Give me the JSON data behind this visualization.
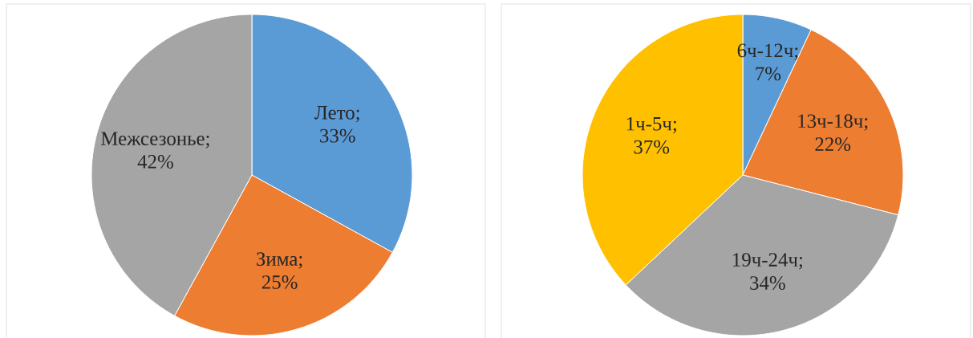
{
  "chart_data": [
    {
      "type": "pie",
      "categories": [
        "Лето",
        "Зима",
        "Межсезонье"
      ],
      "values": [
        33,
        25,
        42
      ],
      "value_labels": [
        "; 33%",
        "; 25%",
        "; 42%"
      ],
      "colors": [
        "#5b9bd5",
        "#ed7d31",
        "#a5a5a5"
      ]
    },
    {
      "type": "pie",
      "categories": [
        "6ч-12ч",
        "13ч-18ч",
        "19ч-24ч",
        "1ч-5ч"
      ],
      "values": [
        7,
        22,
        34,
        37
      ],
      "value_labels": [
        "; 7%",
        "; 22%",
        "; 34%",
        "; 37%"
      ],
      "colors": [
        "#5b9bd5",
        "#ed7d31",
        "#a5a5a5",
        "#ffc000"
      ]
    }
  ]
}
